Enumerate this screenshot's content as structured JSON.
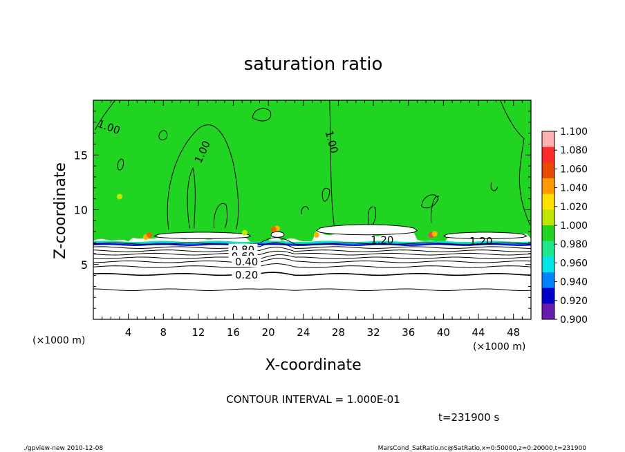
{
  "chart_data": {
    "type": "heatmap",
    "title": "saturation ratio",
    "xlabel": "X-coordinate",
    "ylabel": "Z-coordinate",
    "x_unit": "(×1000 m)",
    "y_unit": "(×1000 m)",
    "xlim": [
      0,
      50
    ],
    "ylim": [
      0,
      20
    ],
    "x_ticks": [
      4,
      8,
      12,
      16,
      20,
      24,
      28,
      32,
      36,
      40,
      44,
      48
    ],
    "y_ticks": [
      5,
      10,
      15
    ],
    "contour_interval_text": "CONTOUR INTERVAL = 1.000E-01",
    "time_text": "t=231900 s",
    "contour_labels": [
      {
        "text": "1.00",
        "x": 1.8,
        "z": 17.6,
        "angle": 20
      },
      {
        "text": "1.00",
        "x": 12.4,
        "z": 15.3,
        "angle": -65
      },
      {
        "text": "1.00",
        "x": 27.3,
        "z": 16.2,
        "angle": 75
      },
      {
        "text": "1.20",
        "x": 33.0,
        "z": 7.3,
        "angle": 0
      },
      {
        "text": "1.20",
        "x": 44.3,
        "z": 7.2,
        "angle": 0
      },
      {
        "text": "0.80",
        "x": 17.1,
        "z": 6.4,
        "angle": 0
      },
      {
        "text": "0.60",
        "x": 17.1,
        "z": 5.8,
        "angle": 0
      },
      {
        "text": "0.40",
        "x": 17.5,
        "z": 5.3,
        "angle": 0
      },
      {
        "text": "0.20",
        "x": 17.5,
        "z": 4.1,
        "angle": 0
      }
    ],
    "field_description_levels": [
      0.2,
      0.4,
      0.6,
      0.8,
      1.0,
      1.2
    ],
    "colorbar": {
      "labels": [
        "1.100",
        "1.080",
        "1.060",
        "1.040",
        "1.020",
        "1.000",
        "0.980",
        "0.960",
        "0.940",
        "0.920",
        "0.900"
      ],
      "colors": [
        "#ff9e9e",
        "#ff3b3b",
        "#f06400",
        "#ffb400",
        "#c8e600",
        "#22d422",
        "#1ee68c",
        "#00e6e6",
        "#0082ff",
        "#0000c8",
        "#6a1bb0"
      ]
    }
  },
  "footer": {
    "left": "./gpview-new  2010-12-08",
    "right": "MarsCond_SatRatio.nc@SatRatio,x=0:50000,z=0:20000,t=231900"
  }
}
